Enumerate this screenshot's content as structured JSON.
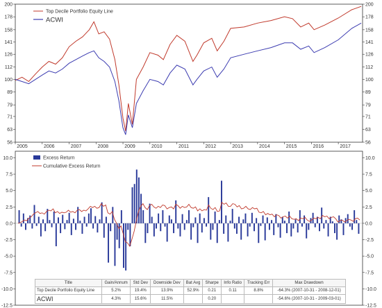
{
  "colors": {
    "portfolio": "#c0392b",
    "acwi": "#3b3bb0",
    "excess_bar": "#2a3a9a",
    "cumulative": "#c0392b",
    "axis": "#333333",
    "grid": "#dddddd"
  },
  "chart_data": [
    {
      "type": "line",
      "legend_placement": "top-left",
      "grid": false,
      "x_ticks": [
        "2005",
        "2006",
        "2007",
        "2008",
        "2009",
        "2010",
        "2011",
        "2012",
        "2013",
        "2014",
        "2015",
        "2016",
        "2017"
      ],
      "y_ticks_left": [
        "56",
        "63",
        "71",
        "79",
        "89",
        "100",
        "112",
        "126",
        "141",
        "158",
        "178",
        "200"
      ],
      "y_ticks_right": [
        "56",
        "63",
        "71",
        "79",
        "89",
        "100",
        "112",
        "126",
        "141",
        "158",
        "178",
        "200"
      ],
      "y_scale": "log",
      "ylim": [
        56,
        200
      ],
      "xlim": [
        2005.0,
        2017.9
      ],
      "series": [
        {
          "name": "Top Decile Portfolio Equity Line",
          "x": [
            2005.0,
            2005.25,
            2005.5,
            2005.75,
            2006.0,
            2006.25,
            2006.5,
            2006.75,
            2007.0,
            2007.25,
            2007.5,
            2007.75,
            2007.92,
            2008.1,
            2008.3,
            2008.5,
            2008.7,
            2008.85,
            2009.0,
            2009.1,
            2009.2,
            2009.35,
            2009.5,
            2009.75,
            2010.0,
            2010.3,
            2010.5,
            2010.75,
            2011.0,
            2011.3,
            2011.6,
            2011.75,
            2012.0,
            2012.3,
            2012.5,
            2012.75,
            2013.0,
            2013.5,
            2014.0,
            2014.5,
            2015.0,
            2015.3,
            2015.6,
            2015.9,
            2016.1,
            2016.5,
            2017.0,
            2017.5,
            2017.85
          ],
          "values": [
            99,
            102,
            98,
            105,
            112,
            118,
            115,
            122,
            135,
            142,
            148,
            158,
            170,
            152,
            155,
            145,
            120,
            95,
            70,
            62,
            80,
            66,
            100,
            112,
            128,
            125,
            120,
            138,
            150,
            142,
            118,
            125,
            140,
            146,
            130,
            142,
            160,
            162,
            168,
            172,
            178,
            175,
            162,
            168,
            158,
            165,
            176,
            190,
            196
          ]
        },
        {
          "name": "ACWI",
          "x": [
            2005.0,
            2005.25,
            2005.5,
            2005.75,
            2006.0,
            2006.25,
            2006.5,
            2006.75,
            2007.0,
            2007.25,
            2007.5,
            2007.75,
            2007.92,
            2008.1,
            2008.3,
            2008.5,
            2008.7,
            2008.85,
            2009.0,
            2009.1,
            2009.2,
            2009.35,
            2009.5,
            2009.75,
            2010.0,
            2010.3,
            2010.5,
            2010.75,
            2011.0,
            2011.3,
            2011.6,
            2011.75,
            2012.0,
            2012.3,
            2012.5,
            2012.75,
            2013.0,
            2013.5,
            2014.0,
            2014.5,
            2015.0,
            2015.3,
            2015.6,
            2015.9,
            2016.1,
            2016.5,
            2017.0,
            2017.5,
            2017.85
          ],
          "values": [
            100,
            98,
            96,
            100,
            104,
            108,
            106,
            110,
            116,
            120,
            124,
            128,
            130,
            122,
            118,
            112,
            98,
            82,
            64,
            60,
            72,
            64,
            80,
            90,
            100,
            98,
            95,
            106,
            114,
            110,
            95,
            100,
            108,
            112,
            102,
            110,
            122,
            126,
            130,
            134,
            140,
            140,
            132,
            136,
            128,
            134,
            144,
            160,
            168
          ]
        }
      ]
    },
    {
      "type": "bar",
      "legend_placement": "top-left",
      "grid": false,
      "x_ticks": [],
      "y_ticks_left": [
        "-12.5",
        "-10.0",
        "-7.5",
        "-5.0",
        "-2.5",
        "0.0",
        "2.5",
        "5.0",
        "7.5",
        "10.0"
      ],
      "y_ticks_right": [
        "-12.5",
        "-10.0",
        "-7.5",
        "-5.0",
        "-2.5",
        "0.0",
        "2.5",
        "5.0",
        "7.5",
        "10.0"
      ],
      "ylim": [
        -12.5,
        11.0
      ],
      "series": [
        {
          "name": "Excess Return",
          "values": [
            2.0,
            -0.5,
            1.5,
            -1.0,
            0.8,
            1.2,
            -0.8,
            2.8,
            -0.4,
            1.0,
            -2.0,
            0.6,
            -1.2,
            2.2,
            0.5,
            -0.6,
            1.8,
            -3.5,
            0.9,
            -1.5,
            1.3,
            -0.9,
            0.5,
            1.6,
            -1.8,
            0.7,
            -1.0,
            2.5,
            0.4,
            -1.6,
            1.0,
            -0.5,
            1.5,
            2.3,
            -0.8,
            1.1,
            -1.4,
            0.6,
            3.2,
            -2.2,
            1.0,
            -6.0,
            -1.2,
            2.5,
            -6.5,
            -2.5,
            -3.8,
            2.0,
            -6.8,
            -7.2,
            -1.0,
            -3.5,
            5.5,
            6.0,
            8.2,
            7.0,
            4.5,
            2.0,
            -3.0,
            -1.5,
            3.0,
            1.0,
            -2.0,
            -0.8,
            1.5,
            -1.2,
            2.0,
            -0.5,
            -2.8,
            1.2,
            0.6,
            -1.5,
            3.5,
            -0.8,
            -2.0,
            1.4,
            -1.0,
            0.5,
            2.0,
            -2.5,
            -0.6,
            0.9,
            -3.0,
            1.5,
            -1.4,
            0.8,
            -0.5,
            4.0,
            -2.5,
            -1.0,
            1.8,
            -3.0,
            0.5,
            6.5,
            -1.6,
            1.2,
            -2.8,
            0.4,
            2.2,
            -0.8,
            -1.6,
            1.0,
            -2.5,
            0.6,
            1.5,
            -2.0,
            -0.5,
            1.6,
            -1.2,
            0.8,
            -3.0,
            -0.4,
            1.2,
            -2.6,
            0.9,
            -1.0,
            0.5,
            -1.8,
            1.4,
            -0.6,
            -2.2,
            1.0,
            0.4,
            -1.5,
            1.8,
            -2.0,
            -0.8,
            0.6,
            -1.4,
            2.0,
            -0.5,
            1.2,
            -2.3,
            -1.0,
            0.8,
            1.6,
            -0.6,
            1.0,
            -1.2,
            2.4,
            -0.8,
            0.5,
            -2.0,
            1.0,
            0.3,
            -1.5,
            -2.5,
            1.2,
            0.6,
            -1.8,
            0.8,
            1.4,
            -0.5,
            -1.0,
            2.0,
            0.5,
            -1.6
          ]
        },
        {
          "name": "Cumulative Excess Return",
          "type": "line",
          "values": [
            0.0,
            0.1,
            0.3,
            0.5,
            0.4,
            0.8,
            1.0,
            1.4,
            1.6,
            1.8,
            1.5,
            1.6,
            1.4,
            1.8,
            2.0,
            1.9,
            2.2,
            1.6,
            1.8,
            1.5,
            1.7,
            1.6,
            1.7,
            2.0,
            1.7,
            1.8,
            1.6,
            2.0,
            2.1,
            1.8,
            2.0,
            1.9,
            2.2,
            2.6,
            2.4,
            2.6,
            2.3,
            2.4,
            3.0,
            2.6,
            2.8,
            1.6,
            1.4,
            1.8,
            0.6,
            0.0,
            -0.8,
            -0.4,
            -1.6,
            -2.8,
            -3.0,
            -3.5,
            -2.4,
            -1.2,
            0.4,
            1.8,
            2.6,
            3.0,
            2.4,
            2.1,
            2.7,
            2.9,
            2.5,
            2.3,
            2.6,
            2.4,
            2.8,
            2.7,
            2.2,
            2.4,
            2.5,
            2.2,
            2.9,
            2.7,
            2.3,
            2.6,
            2.4,
            2.5,
            2.9,
            2.4,
            2.3,
            2.5,
            1.9,
            2.2,
            1.9,
            2.1,
            2.0,
            2.8,
            2.3,
            2.1,
            2.4,
            1.8,
            1.9,
            3.2,
            2.9,
            3.1,
            2.6,
            2.6,
            3.0,
            2.9,
            2.5,
            2.7,
            2.2,
            2.3,
            2.6,
            2.2,
            2.1,
            2.4,
            2.2,
            2.3,
            1.7,
            1.6,
            1.8,
            1.3,
            1.5,
            1.3,
            1.4,
            1.0,
            1.3,
            1.2,
            0.8,
            1.0,
            1.1,
            0.8,
            1.1,
            0.7,
            0.6,
            0.7,
            0.4,
            0.8,
            0.7,
            0.9,
            0.5,
            0.3,
            0.5,
            0.8,
            0.7,
            0.9,
            0.7,
            1.2,
            1.0,
            1.1,
            0.7,
            0.9,
            1.0,
            0.7,
            0.2,
            0.4,
            0.5,
            0.2,
            0.4,
            0.6,
            0.5,
            0.3,
            0.7,
            0.8,
            0.5
          ]
        }
      ]
    }
  ],
  "stats_table": {
    "headers": [
      "Title",
      "Gain/Annum",
      "Std Dev",
      "Downside Dev",
      "Bat Avg",
      "Sharpe",
      "Info Ratio",
      "Tracking Err",
      "Max Drawdown"
    ],
    "rows": [
      [
        "Top Decile Portfolio Equity Line",
        "5.2%",
        "19.4%",
        "13.9%",
        "52.9%",
        "0.21",
        "0.11",
        "8.8%",
        "-64.3% (2007-10-31 - 2008-12-01)"
      ],
      [
        "ACWI",
        "4.3%",
        "15.6%",
        "11.5%",
        "",
        "0.20",
        "",
        "",
        "-54.6% (2007-10-31 - 2009-03-01)"
      ]
    ]
  }
}
